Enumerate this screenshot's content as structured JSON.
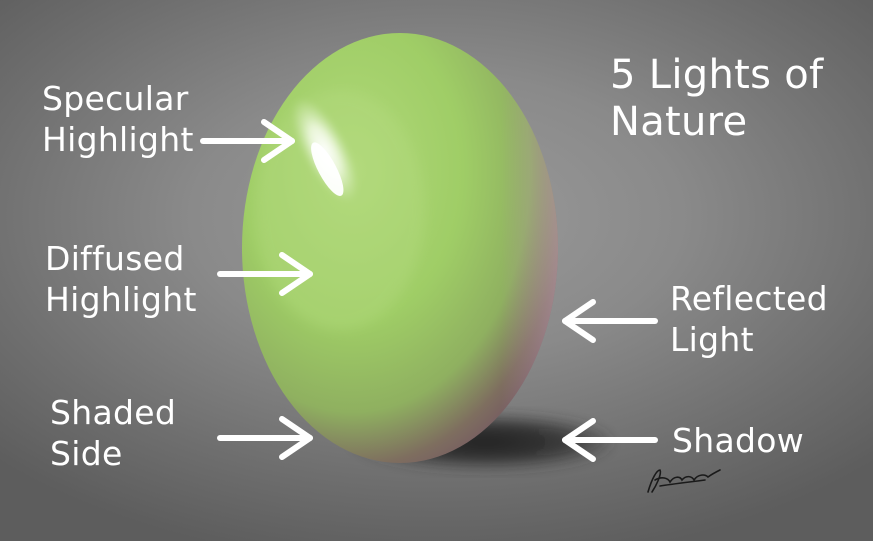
{
  "title": {
    "line1": "5 Lights of",
    "line2": "Nature"
  },
  "labels": {
    "specular": {
      "line1": "Specular",
      "line2": "Highlight"
    },
    "diffused": {
      "line1": "Diffused",
      "line2": "Highlight"
    },
    "shaded": {
      "line1": "Shaded",
      "line2": "Side"
    },
    "reflected": {
      "line1": "Reflected",
      "line2": "Light"
    },
    "shadow": {
      "line1": "Shadow"
    }
  },
  "colors": {
    "background": "#8a8a8a",
    "egg_light": "#a9d46c",
    "egg_mid": "#9ccb63",
    "egg_shade": "#7a5a63",
    "shadow": "#2a2a2a",
    "text": "#ffffff"
  },
  "signature": "signature"
}
